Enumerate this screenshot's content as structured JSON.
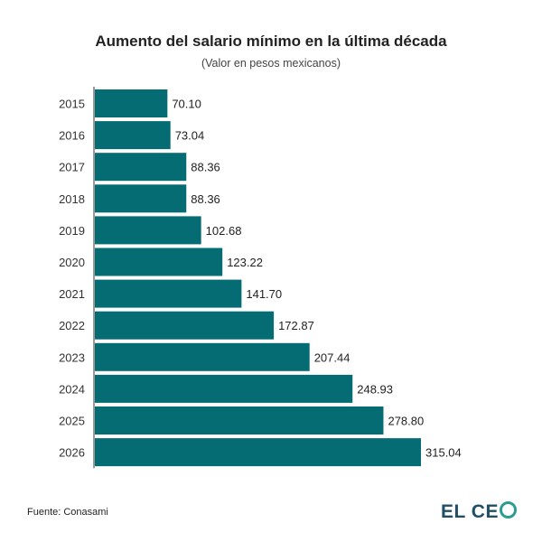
{
  "chart_data": {
    "type": "bar",
    "orientation": "horizontal",
    "title": "Aumento del salario mínimo en la última década",
    "subtitle": "(Valor en pesos mexicanos)",
    "categories": [
      "2015",
      "2016",
      "2017",
      "2018",
      "2019",
      "2020",
      "2021",
      "2022",
      "2023",
      "2024",
      "2025",
      "2026"
    ],
    "values": [
      70.1,
      73.04,
      88.36,
      88.36,
      102.68,
      123.22,
      141.7,
      172.87,
      207.44,
      248.93,
      278.8,
      315.04
    ],
    "value_labels": [
      "70.10",
      "73.04",
      "88.36",
      "88.36",
      "102.68",
      "123.22",
      "141.70",
      "172.87",
      "207.44",
      "248.93",
      "278.80",
      "315.04"
    ],
    "xlim": [
      0,
      315.04
    ],
    "grid": false,
    "bar_color": "#056c73"
  },
  "footer": {
    "source": "Fuente: Conasami",
    "logo_text_a": "EL CE",
    "logo_color": "#1f4e66",
    "logo_accent": "#2a9d8f"
  }
}
